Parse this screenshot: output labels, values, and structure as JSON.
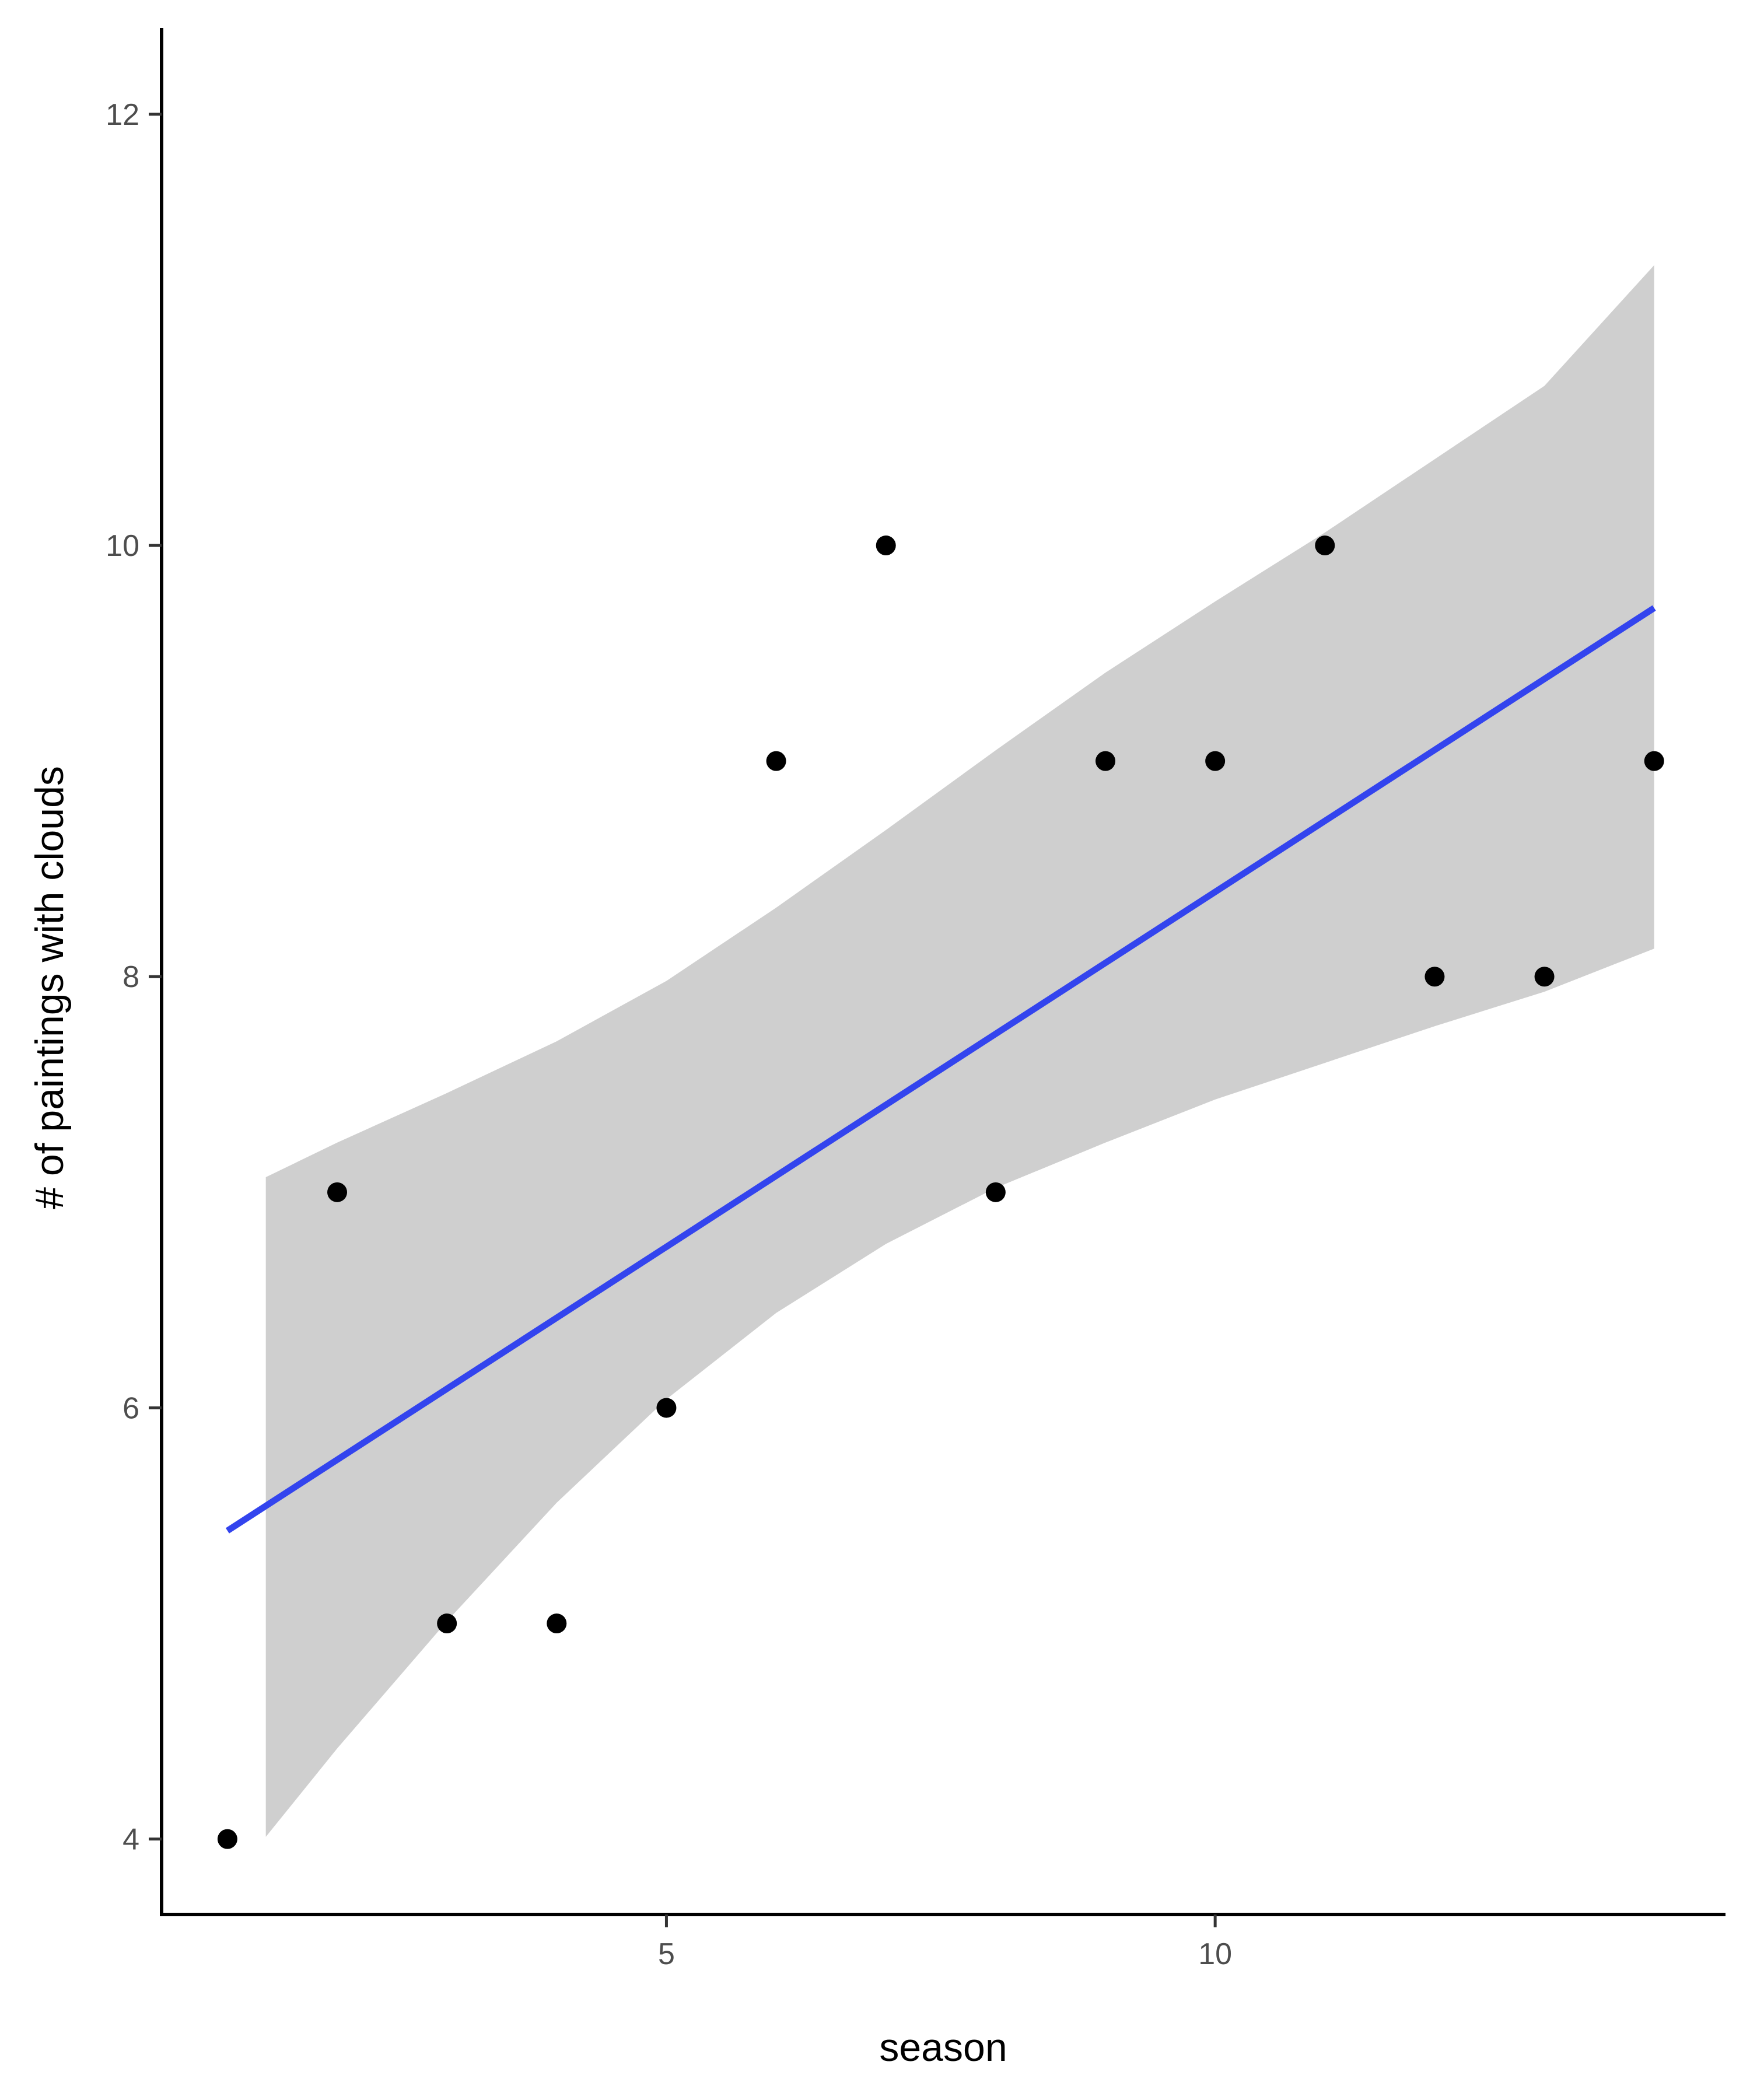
{
  "chart_data": {
    "type": "scatter",
    "title": "",
    "xlabel": "season",
    "ylabel": "# of paintings with clouds",
    "xlim": [
      0.4,
      14.65
    ],
    "ylim": [
      3.65,
      12.4
    ],
    "x_ticks": [
      5,
      10
    ],
    "y_ticks": [
      4,
      6,
      8,
      10,
      12
    ],
    "grid": false,
    "legend": "none",
    "points": [
      {
        "x": 1,
        "y": 4
      },
      {
        "x": 2,
        "y": 7
      },
      {
        "x": 3,
        "y": 5
      },
      {
        "x": 4,
        "y": 5
      },
      {
        "x": 5,
        "y": 6
      },
      {
        "x": 6,
        "y": 9
      },
      {
        "x": 7,
        "y": 10
      },
      {
        "x": 8,
        "y": 7
      },
      {
        "x": 9,
        "y": 9
      },
      {
        "x": 10,
        "y": 9
      },
      {
        "x": 11,
        "y": 10
      },
      {
        "x": 12,
        "y": 8
      },
      {
        "x": 13,
        "y": 8
      },
      {
        "x": 14,
        "y": 9
      }
    ],
    "trend_line": {
      "method": "linear",
      "x": [
        1,
        14
      ],
      "y": [
        5.43,
        9.71
      ]
    },
    "confidence_band": {
      "x": [
        1.35,
        2,
        3,
        4,
        5,
        6,
        7,
        8,
        9,
        10,
        11,
        12,
        13,
        14
      ],
      "lower": [
        4.01,
        4.42,
        5.01,
        5.56,
        6.04,
        6.44,
        6.76,
        7.02,
        7.23,
        7.43,
        7.6,
        7.77,
        7.93,
        8.13
      ],
      "upper": [
        7.07,
        7.23,
        7.46,
        7.7,
        7.98,
        8.32,
        8.68,
        9.05,
        9.41,
        9.74,
        10.06,
        10.4,
        10.74,
        11.3
      ]
    },
    "colors": {
      "points": "#000000",
      "trend_line": "#3344ee",
      "band": "#cfcfcf",
      "axis": "#000000"
    }
  }
}
